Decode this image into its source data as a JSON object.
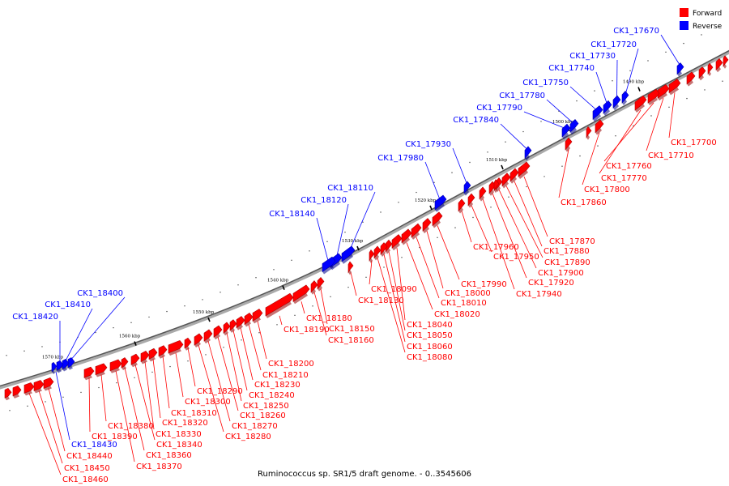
{
  "legend": {
    "forward_label": "Forward",
    "forward_color": "#ff0000",
    "reverse_label": "Reverse",
    "reverse_color": "#0000ff"
  },
  "caption": "Ruminococcus sp. SR1/5 draft genome. - 0..3545606",
  "ticks": [
    "1490 kbp",
    "1500 kbp",
    "1510 kbp",
    "1520 kbp",
    "1530 kbp",
    "1540 kbp",
    "1550 kbp",
    "1560 kbp",
    "1570 kbp"
  ],
  "forward_genes": [
    "CK1_17700",
    "CK1_17710",
    "CK1_17760",
    "CK1_17770",
    "CK1_17800",
    "CK1_17860",
    "CK1_17870",
    "CK1_17880",
    "CK1_17890",
    "CK1_17900",
    "CK1_17920",
    "CK1_17940",
    "CK1_17950",
    "CK1_17960",
    "CK1_17990",
    "CK1_18000",
    "CK1_18010",
    "CK1_18020",
    "CK1_18040",
    "CK1_18050",
    "CK1_18060",
    "CK1_18080",
    "CK1_18090",
    "CK1_18130",
    "CK1_18150",
    "CK1_18160",
    "CK1_18180",
    "CK1_18190",
    "CK1_18200",
    "CK1_18210",
    "CK1_18230",
    "CK1_18240",
    "CK1_18250",
    "CK1_18260",
    "CK1_18270",
    "CK1_18280",
    "CK1_18290",
    "CK1_18300",
    "CK1_18310",
    "CK1_18320",
    "CK1_18330",
    "CK1_18340",
    "CK1_18360",
    "CK1_18370",
    "CK1_18380",
    "CK1_18390",
    "CK1_18440",
    "CK1_18450",
    "CK1_18460"
  ],
  "reverse_genes": [
    "CK1_17670",
    "CK1_17720",
    "CK1_17730",
    "CK1_17740",
    "CK1_17750",
    "CK1_17780",
    "CK1_17790",
    "CK1_17840",
    "CK1_17930",
    "CK1_17980",
    "CK1_18110",
    "CK1_18120",
    "CK1_18140",
    "CK1_18400",
    "CK1_18410",
    "CK1_18420",
    "CK1_18430"
  ]
}
